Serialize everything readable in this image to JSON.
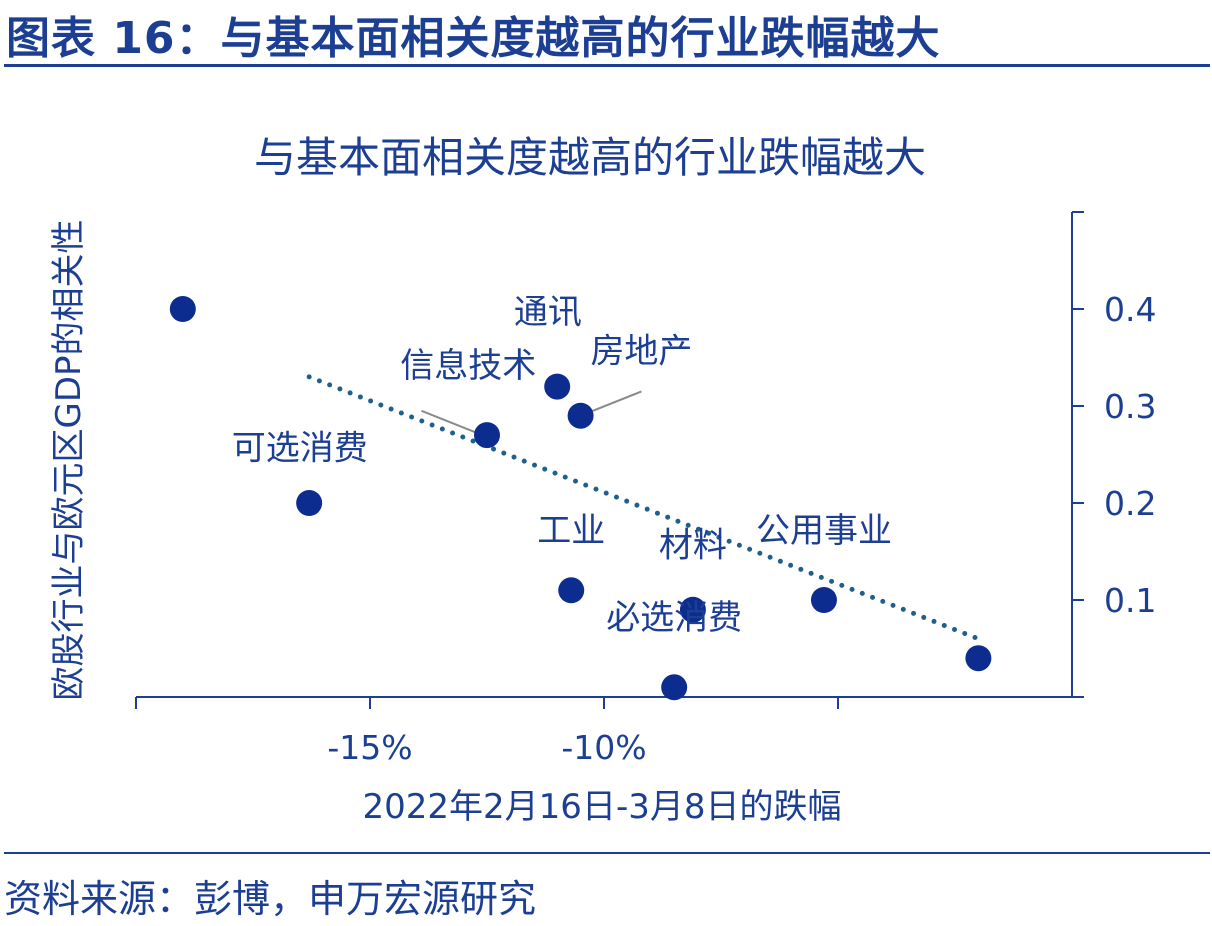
{
  "figure_title": "图表 16：与基本面相关度越高的行业跌幅越大",
  "source": "资料来源：彭博，申万宏源研究",
  "colors": {
    "primary": "#1c3f94",
    "point": "#0d2c8f",
    "trend": "#1f5f8b"
  },
  "chart_data": {
    "type": "scatter",
    "title": "与基本面相关度越高的行业跌幅越大",
    "xlabel": "2022年2月16日-3月8日的跌幅",
    "ylabel": "欧股行业与欧元区GDP的相关性",
    "xlim": [
      -20,
      0
    ],
    "ylim": [
      0,
      0.5
    ],
    "x_ticks": [
      {
        "value": -15,
        "label": "-15%"
      },
      {
        "value": -10,
        "label": "-10%"
      }
    ],
    "y_ticks": [
      {
        "value": 0.1,
        "label": "0.1"
      },
      {
        "value": 0.2,
        "label": "0.2"
      },
      {
        "value": 0.3,
        "label": "0.3"
      },
      {
        "value": 0.4,
        "label": "0.4"
      }
    ],
    "y_axis_side": "right",
    "grid": false,
    "points": [
      {
        "x": -19.0,
        "y": 0.4
      },
      {
        "x": -16.3,
        "y": 0.2
      },
      {
        "x": -12.5,
        "y": 0.27
      },
      {
        "x": -11.0,
        "y": 0.32
      },
      {
        "x": -10.5,
        "y": 0.29
      },
      {
        "x": -10.7,
        "y": 0.11
      },
      {
        "x": -8.1,
        "y": 0.09
      },
      {
        "x": -8.5,
        "y": 0.01
      },
      {
        "x": -5.3,
        "y": 0.1
      },
      {
        "x": -2.0,
        "y": 0.04
      }
    ],
    "trendline": {
      "x": [
        -16.3,
        -2.0
      ],
      "y": [
        0.33,
        0.06
      ],
      "style": "dotted"
    },
    "annotations": [
      {
        "text": "可选消费",
        "x": -16.5,
        "y": 0.245
      },
      {
        "text": "信息技术",
        "x": -12.9,
        "y": 0.33
      },
      {
        "text": "通讯",
        "x": -11.2,
        "y": 0.385
      },
      {
        "text": "房地产",
        "x": -9.2,
        "y": 0.345
      },
      {
        "text": "工业",
        "x": -10.7,
        "y": 0.16
      },
      {
        "text": "材料",
        "x": -8.1,
        "y": 0.145
      },
      {
        "text": "公用事业",
        "x": -5.3,
        "y": 0.16
      },
      {
        "text": "必选消费",
        "x": -8.5,
        "y": 0.07
      }
    ],
    "leader_lines": [
      {
        "from": [
          -13.9,
          0.295
        ],
        "to": [
          -12.6,
          0.27
        ]
      },
      {
        "from": [
          -9.2,
          0.315
        ],
        "to": [
          -10.5,
          0.29
        ]
      }
    ]
  }
}
